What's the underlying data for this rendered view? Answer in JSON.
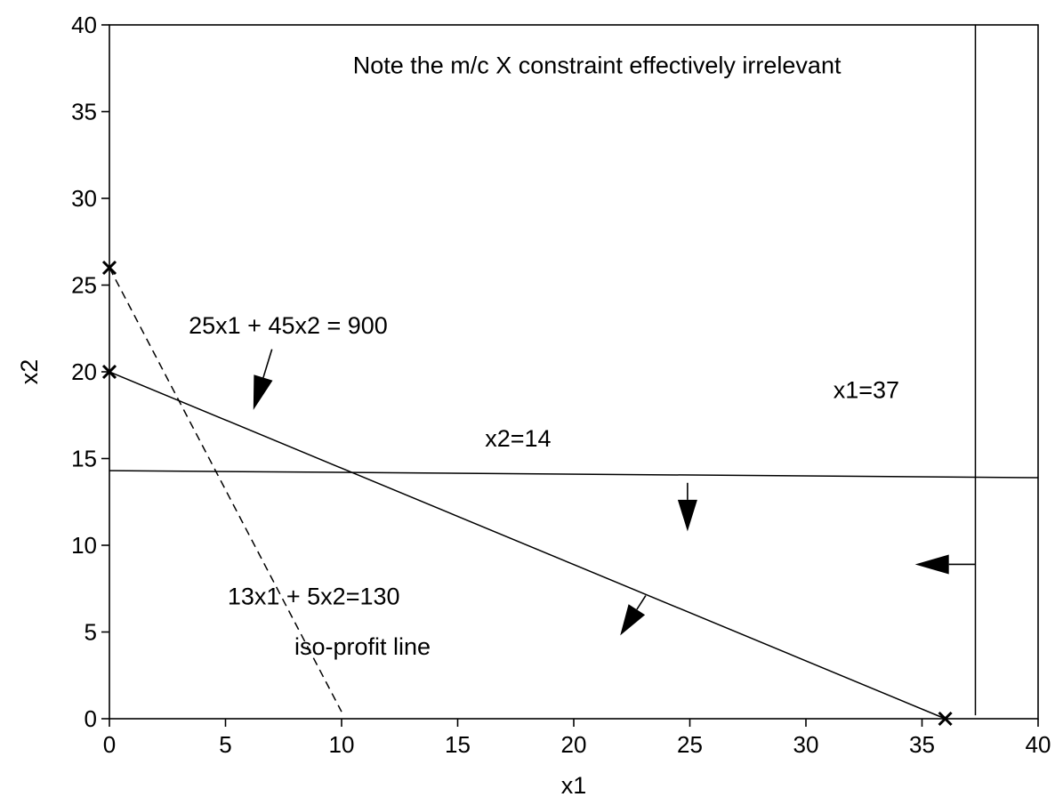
{
  "chart_data": {
    "type": "line",
    "title": "",
    "xlabel": "x1",
    "ylabel": "x2",
    "xlim": [
      0,
      40
    ],
    "ylim": [
      0,
      40
    ],
    "xticks": [
      "0",
      "5",
      "10",
      "15",
      "20",
      "25",
      "30",
      "35",
      "40"
    ],
    "yticks": [
      "0",
      "5",
      "10",
      "15",
      "20",
      "25",
      "30",
      "35",
      "40"
    ],
    "grid": false,
    "series": [
      {
        "points": [
          [
            0,
            20
          ],
          [
            36,
            0
          ]
        ],
        "style": "solid"
      },
      {
        "points": [
          [
            0,
            14.3
          ],
          [
            40,
            13.9
          ]
        ],
        "style": "solid"
      },
      {
        "points": [
          [
            37.3,
            0.2
          ],
          [
            37.3,
            40
          ]
        ],
        "style": "solid"
      },
      {
        "points": [
          [
            0,
            26
          ],
          [
            10,
            0.4
          ]
        ],
        "style": "dashed"
      }
    ],
    "markers": [
      [
        0,
        26
      ],
      [
        0,
        20
      ],
      [
        36,
        0
      ]
    ],
    "annotations": [
      {
        "text": "Note the m/c X constraint effectively irrelevant",
        "x": 21,
        "y": 37.2
      },
      {
        "text": "25x1 + 45x2 = 900",
        "x": 7.7,
        "y": 22.2
      },
      {
        "text": "x1=37",
        "x": 32.6,
        "y": 18.5
      },
      {
        "text": "x2=14",
        "x": 17.6,
        "y": 15.7
      },
      {
        "text": "13x1 + 5x2=130",
        "x": 8.8,
        "y": 6.6
      },
      {
        "text": "iso-profit line",
        "x": 10.9,
        "y": 3.7
      }
    ],
    "arrows": [
      {
        "from": [
          7.0,
          21.3
        ],
        "to": [
          6.2,
          17.8
        ]
      },
      {
        "from": [
          24.9,
          13.6
        ],
        "to": [
          24.9,
          10.8
        ]
      },
      {
        "from": [
          23.1,
          7.1
        ],
        "to": [
          22.0,
          4.8
        ]
      },
      {
        "from": [
          37.3,
          8.9
        ],
        "to": [
          34.7,
          8.9
        ]
      }
    ]
  }
}
